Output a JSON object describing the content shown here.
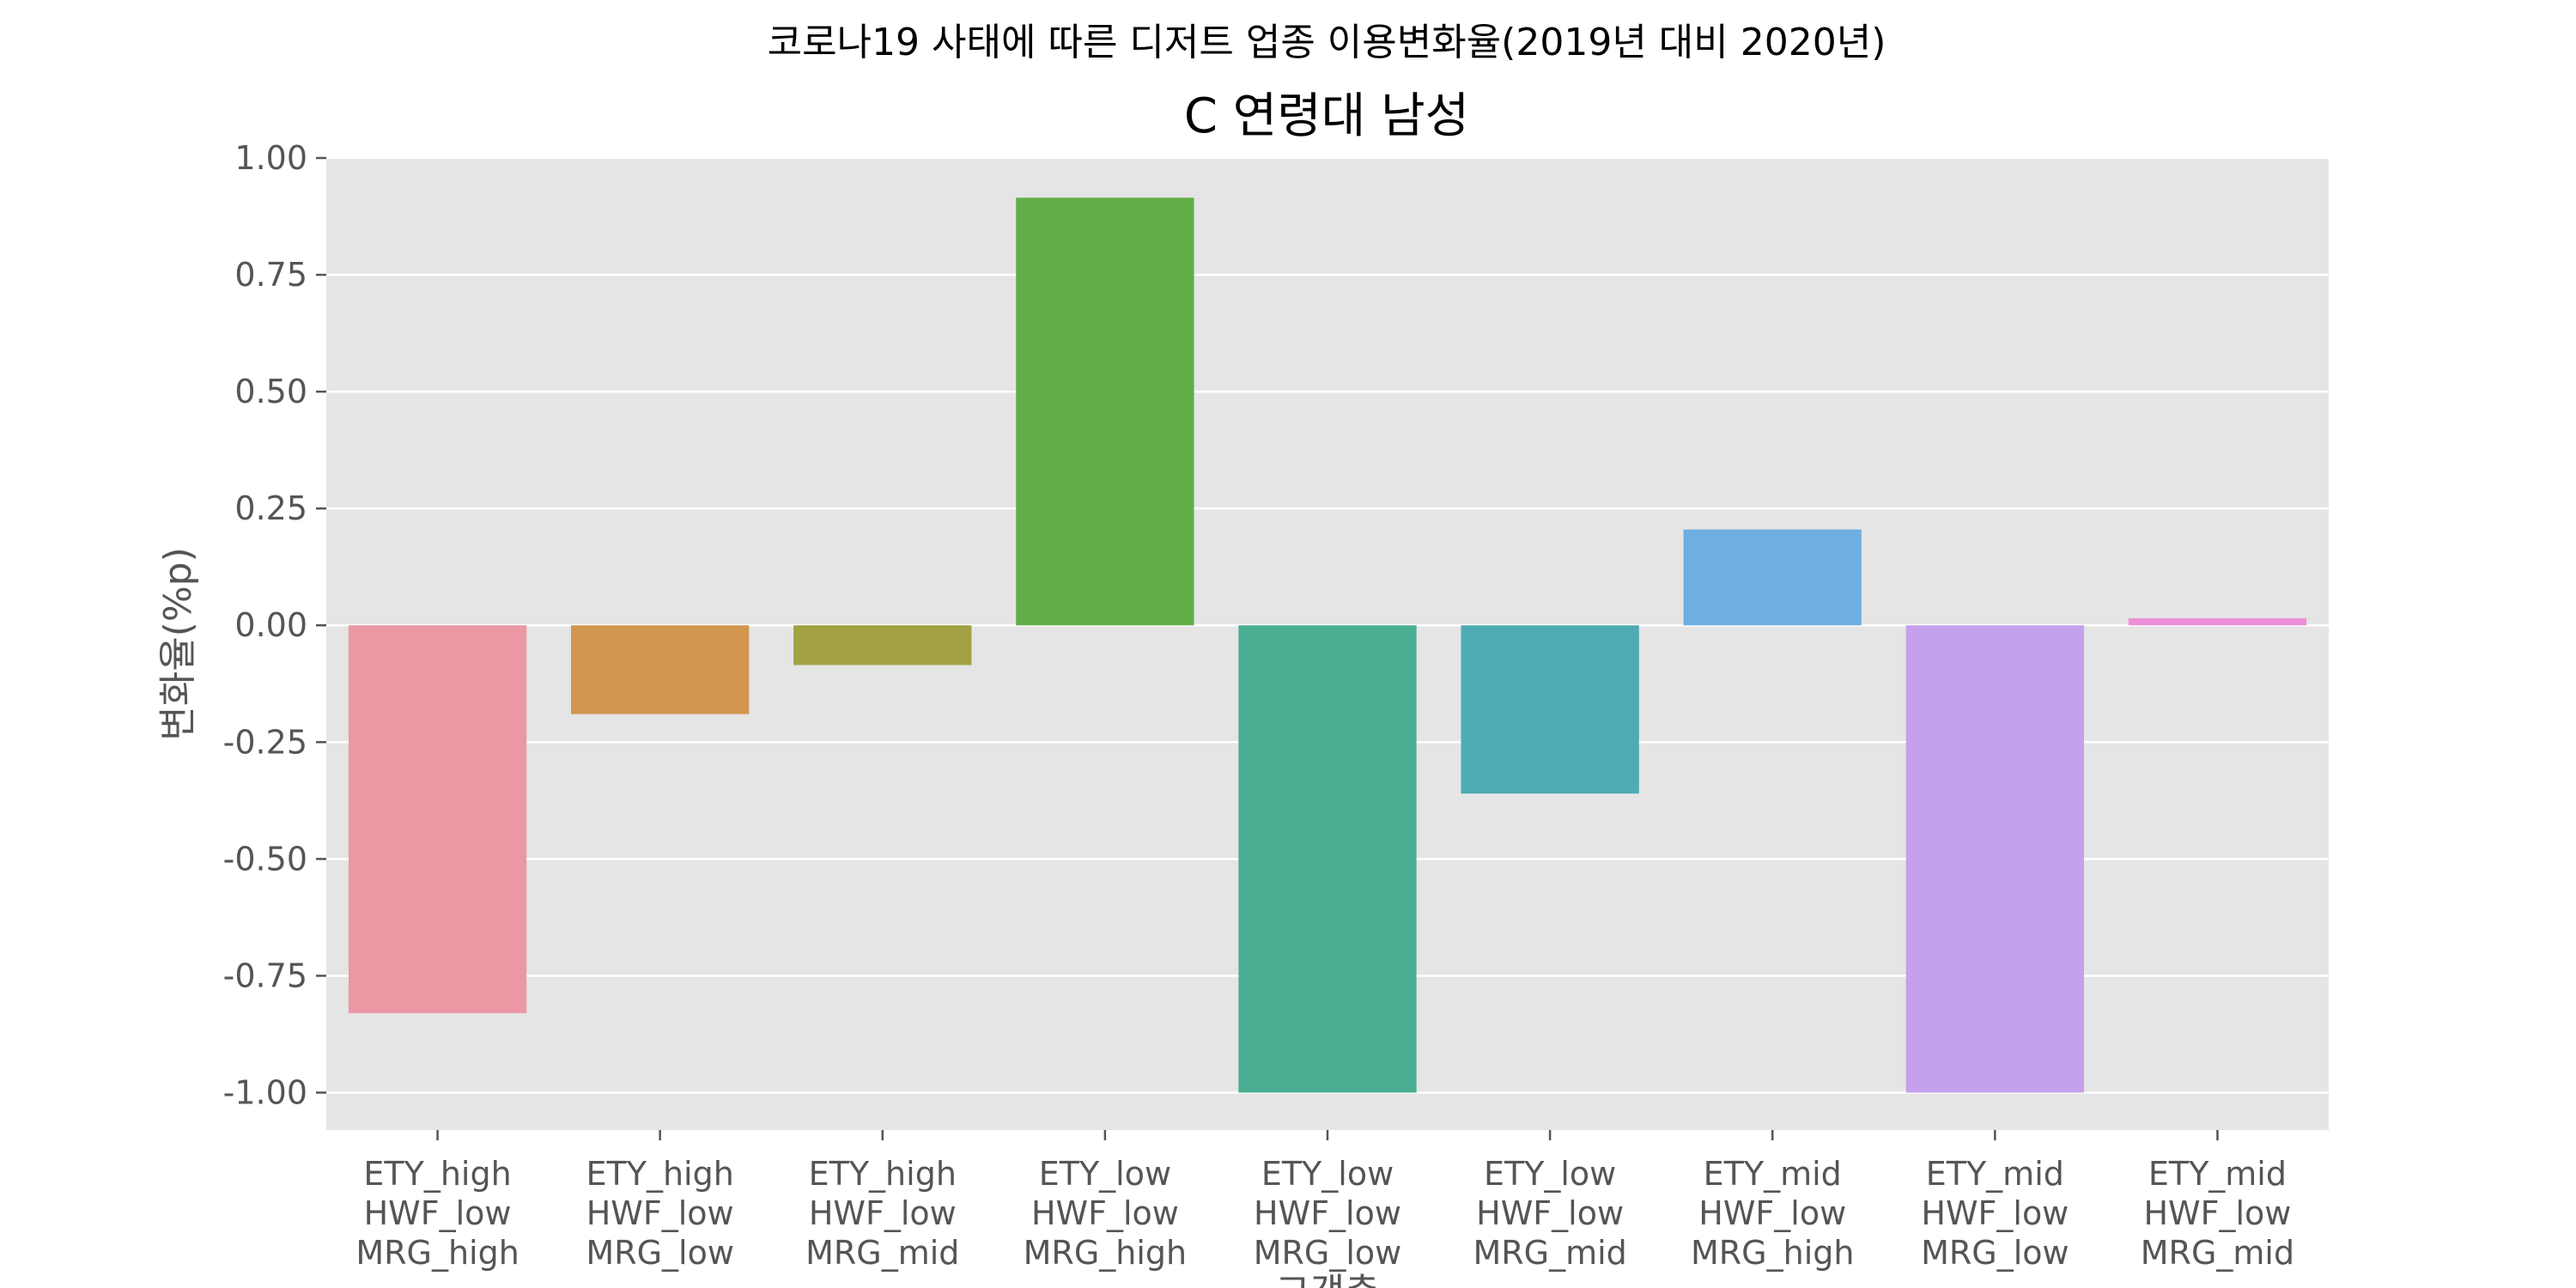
{
  "chart_data": {
    "type": "bar",
    "suptitle": "코로나19 사태에 따른 디저트 업종 이용변화율(2019년 대비 2020년)",
    "title": "C 연령대 남성",
    "xlabel": "고객층",
    "ylabel": "변화율(%p)",
    "categories": [
      [
        "ETY_high",
        "HWF_low",
        "MRG_high"
      ],
      [
        "ETY_high",
        "HWF_low",
        "MRG_low"
      ],
      [
        "ETY_high",
        "HWF_low",
        "MRG_mid"
      ],
      [
        "ETY_low",
        "HWF_low",
        "MRG_high"
      ],
      [
        "ETY_low",
        "HWF_low",
        "MRG_low"
      ],
      [
        "ETY_low",
        "HWF_low",
        "MRG_mid"
      ],
      [
        "ETY_mid",
        "HWF_low",
        "MRG_high"
      ],
      [
        "ETY_mid",
        "HWF_low",
        "MRG_low"
      ],
      [
        "ETY_mid",
        "HWF_low",
        "MRG_mid"
      ]
    ],
    "values": [
      -0.83,
      -0.19,
      -0.085,
      0.915,
      -1.0,
      -0.36,
      0.205,
      -1.0,
      0.015
    ],
    "colors": [
      "#ec97a4",
      "#d2964f",
      "#a2a144",
      "#61ae46",
      "#4aae93",
      "#4eabb3",
      "#6daee3",
      "#c5a0ec",
      "#ec8ed8"
    ],
    "ylim": [
      -1.08,
      1.0
    ],
    "yticks": [
      1.0,
      0.75,
      0.5,
      0.25,
      0.0,
      -0.25,
      -0.5,
      -0.75,
      -1.0
    ],
    "ytick_labels": [
      "1.00",
      "0.75",
      "0.50",
      "0.25",
      "0.00",
      "-0.25",
      "-0.50",
      "-0.75",
      "-1.00"
    ],
    "grid": true,
    "background": "#e5e5e5",
    "grid_color": "#ffffff"
  }
}
